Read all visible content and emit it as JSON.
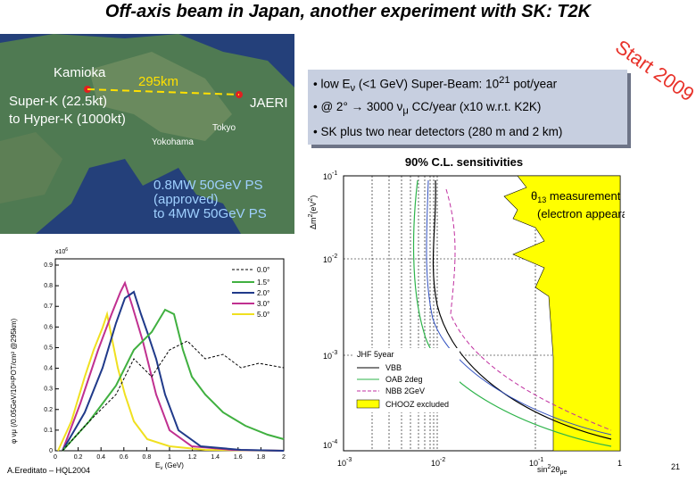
{
  "header": {
    "title": "Off-axis beam in Japan, another experiment with SK: T2K",
    "badge": "Start 2009"
  },
  "map": {
    "labels": [
      "Kamioka",
      "Super-K (22.5kt)",
      "to Hyper-K (1000kt)",
      "295km",
      "JAERI",
      "Tokyo",
      "Yokohama",
      "0.8MW 50GeV PS",
      "(approved)",
      "to 4MW 50GeV PS"
    ]
  },
  "bullets": [
    [
      "• low E",
      "ν",
      " (<1 GeV) Super-Beam: 10",
      "21",
      " pot/year"
    ],
    [
      "• @ 2° → 3000 ν",
      "μ",
      " CC/year (x10 w.r.t. K2K)"
    ],
    [
      "• SK plus two near detectors (280 m and 2 km)"
    ]
  ],
  "sensitivity_plot": {
    "title": "90% C.L. sensitivities",
    "annotation": [
      "θ",
      "13",
      " measurement",
      "(electron appearance)"
    ],
    "y_label": [
      "Δm",
      "2",
      "(eV",
      "2",
      ")"
    ],
    "x_label": [
      "sin",
      "2",
      "2θ",
      "μe"
    ],
    "yticks": [
      [
        "10",
        "-1"
      ],
      [
        "10",
        "-2"
      ],
      [
        "10",
        "-3"
      ],
      [
        "10",
        "-4"
      ]
    ],
    "xticks": [
      [
        "10",
        "-3"
      ],
      [
        "10",
        "-2"
      ],
      [
        "10",
        "-1"
      ],
      "1"
    ],
    "legend": [
      "JHF 5year",
      "VBB",
      "OAB 2deg",
      "NBB 2GeV",
      "CHOOZ excluded"
    ]
  },
  "flux_plot": {
    "y_label": "φ νμ (/0.05GeV/10²¹POT/cm² @295km)",
    "multiplier": [
      "x10",
      "6"
    ],
    "x_label": [
      "E",
      "ν",
      " (GeV)"
    ],
    "yticks": [
      "0",
      "0.1",
      "0.2",
      "0.3",
      "0.4",
      "0.5",
      "0.6",
      "0.7",
      "0.8",
      "0.9"
    ],
    "xticks": [
      "0",
      "0.2",
      "0.4",
      "0.6",
      "0.8",
      "1",
      "1.2",
      "1.4",
      "1.6",
      "1.8",
      "2"
    ],
    "legend": [
      "0.0°",
      "1.5°",
      "2.0°",
      "3.0°",
      "5.0°"
    ]
  },
  "footer": {
    "author": "A.Ereditato – HQL2004",
    "page": "21"
  }
}
